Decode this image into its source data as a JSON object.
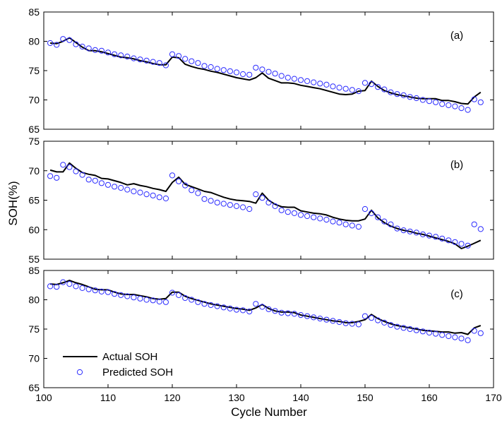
{
  "chart_data": {
    "type": "line",
    "xlabel": "Cycle Number",
    "ylabel": "SOH(%)",
    "xlim": [
      100,
      170
    ],
    "xticks": [
      100,
      110,
      120,
      130,
      140,
      150,
      160,
      170
    ],
    "legend": {
      "placement": "bottom-left-of-panel-c",
      "entries": [
        {
          "label": "Actual SOH",
          "style": "line",
          "color": "#000000"
        },
        {
          "label": "Predicted SOH",
          "style": "circle",
          "color": "#2b2bff"
        }
      ]
    },
    "panels": [
      {
        "label": "(a)",
        "ylim": [
          65,
          85
        ],
        "yticks": [
          65,
          70,
          75,
          80,
          85
        ],
        "actual": {
          "x": [
            101,
            102,
            103,
            104,
            105,
            106,
            107,
            108,
            109,
            110,
            111,
            112,
            113,
            114,
            115,
            116,
            117,
            118,
            119,
            120,
            121,
            122,
            123,
            124,
            125,
            126,
            127,
            128,
            129,
            130,
            131,
            132,
            133,
            134,
            135,
            136,
            137,
            138,
            139,
            140,
            141,
            142,
            143,
            144,
            145,
            146,
            147,
            148,
            149,
            150,
            151,
            152,
            153,
            154,
            155,
            156,
            157,
            158,
            159,
            160,
            161,
            162,
            163,
            164,
            165,
            166,
            167,
            168
          ],
          "y": [
            79.7,
            79.6,
            80.0,
            80.6,
            79.8,
            79.0,
            78.4,
            78.4,
            78.2,
            77.9,
            77.6,
            77.3,
            77.2,
            77.0,
            76.7,
            76.5,
            76.2,
            76.0,
            76.0,
            77.3,
            77.2,
            76.1,
            75.7,
            75.4,
            75.2,
            74.9,
            74.7,
            74.4,
            74.1,
            73.8,
            73.6,
            73.4,
            73.8,
            74.6,
            73.7,
            73.3,
            72.9,
            72.9,
            72.8,
            72.5,
            72.3,
            72.1,
            71.9,
            71.6,
            71.3,
            71.0,
            70.9,
            71.0,
            71.5,
            71.6,
            73.2,
            72.3,
            71.6,
            71.2,
            70.9,
            70.7,
            70.5,
            70.3,
            70.2,
            70.2,
            70.2,
            69.9,
            69.9,
            69.7,
            69.4,
            69.3,
            70.5,
            71.3
          ]
        },
        "predicted": {
          "x": [
            101,
            102,
            103,
            104,
            105,
            106,
            107,
            108,
            109,
            110,
            111,
            112,
            113,
            114,
            115,
            116,
            117,
            118,
            119,
            120,
            121,
            122,
            123,
            124,
            125,
            126,
            127,
            128,
            129,
            130,
            131,
            132,
            133,
            134,
            135,
            136,
            137,
            138,
            139,
            140,
            141,
            142,
            143,
            144,
            145,
            146,
            147,
            148,
            149,
            150,
            151,
            152,
            153,
            154,
            155,
            156,
            157,
            158,
            159,
            160,
            161,
            162,
            163,
            164,
            165,
            166,
            167,
            168
          ],
          "y": [
            79.7,
            79.4,
            80.4,
            80.2,
            79.5,
            79.1,
            78.8,
            78.5,
            78.4,
            78.1,
            77.8,
            77.6,
            77.4,
            77.1,
            76.9,
            76.7,
            76.5,
            76.3,
            75.9,
            77.8,
            77.5,
            77.0,
            76.6,
            76.3,
            75.8,
            75.6,
            75.3,
            75.1,
            74.9,
            74.7,
            74.4,
            74.3,
            75.5,
            75.2,
            74.8,
            74.5,
            74.1,
            73.8,
            73.6,
            73.4,
            73.2,
            73.0,
            72.8,
            72.6,
            72.3,
            72.1,
            71.9,
            71.7,
            71.5,
            72.9,
            72.7,
            72.2,
            71.8,
            71.3,
            71.0,
            70.8,
            70.5,
            70.3,
            70.0,
            69.8,
            69.6,
            69.3,
            69.1,
            68.9,
            68.6,
            68.3,
            70.1,
            69.6
          ]
        }
      },
      {
        "label": "(b)",
        "ylim": [
          55,
          75
        ],
        "yticks": [
          55,
          60,
          65,
          70,
          75
        ],
        "actual": {
          "x": [
            101,
            102,
            103,
            104,
            105,
            106,
            107,
            108,
            109,
            110,
            111,
            112,
            113,
            114,
            115,
            116,
            117,
            118,
            119,
            120,
            121,
            122,
            123,
            124,
            125,
            126,
            127,
            128,
            129,
            130,
            131,
            132,
            133,
            134,
            135,
            136,
            137,
            138,
            139,
            140,
            141,
            142,
            143,
            144,
            145,
            146,
            147,
            148,
            149,
            150,
            151,
            152,
            153,
            154,
            155,
            156,
            157,
            158,
            159,
            160,
            161,
            162,
            163,
            164,
            165,
            166,
            167,
            168
          ],
          "y": [
            70.1,
            69.8,
            69.8,
            71.3,
            70.4,
            69.7,
            69.4,
            69.2,
            68.7,
            68.6,
            68.3,
            68.0,
            67.6,
            67.8,
            67.5,
            67.3,
            67.0,
            66.8,
            66.5,
            68.0,
            68.9,
            67.7,
            67.3,
            66.9,
            66.5,
            66.3,
            65.9,
            65.5,
            65.2,
            65.0,
            64.9,
            64.8,
            64.5,
            66.2,
            65.0,
            64.3,
            63.9,
            63.8,
            63.8,
            63.2,
            63.0,
            62.8,
            62.7,
            62.5,
            62.1,
            61.8,
            61.6,
            61.5,
            61.5,
            61.8,
            63.3,
            62.0,
            61.2,
            60.6,
            60.2,
            59.9,
            59.7,
            59.4,
            59.2,
            58.9,
            58.6,
            58.3,
            58.0,
            57.6,
            56.8,
            57.2,
            57.7,
            58.2
          ]
        },
        "predicted": {
          "x": [
            101,
            102,
            103,
            104,
            105,
            106,
            107,
            108,
            109,
            110,
            111,
            112,
            113,
            114,
            115,
            116,
            117,
            118,
            119,
            120,
            121,
            122,
            123,
            124,
            125,
            126,
            127,
            128,
            129,
            130,
            131,
            132,
            133,
            134,
            135,
            136,
            137,
            138,
            139,
            140,
            141,
            142,
            143,
            144,
            145,
            146,
            147,
            148,
            149,
            150,
            151,
            152,
            153,
            154,
            155,
            156,
            157,
            158,
            159,
            160,
            161,
            162,
            163,
            164,
            165,
            166,
            167,
            168
          ],
          "y": [
            69.1,
            68.8,
            71.0,
            70.6,
            69.9,
            69.3,
            68.5,
            68.3,
            67.9,
            67.6,
            67.3,
            67.1,
            66.8,
            66.5,
            66.3,
            66.0,
            65.8,
            65.5,
            65.3,
            69.2,
            68.2,
            67.5,
            66.7,
            66.2,
            65.2,
            64.9,
            64.6,
            64.4,
            64.2,
            64.0,
            63.8,
            63.5,
            66.0,
            65.4,
            64.6,
            64.0,
            63.3,
            63.0,
            62.8,
            62.5,
            62.3,
            62.1,
            61.9,
            61.7,
            61.4,
            61.2,
            60.9,
            60.7,
            60.5,
            63.5,
            62.8,
            62.1,
            61.4,
            60.9,
            60.2,
            59.9,
            59.7,
            59.5,
            59.2,
            59.0,
            58.8,
            58.5,
            58.2,
            57.9,
            57.6,
            57.3,
            60.9,
            60.1
          ]
        }
      },
      {
        "label": "(c)",
        "ylim": [
          65,
          85
        ],
        "yticks": [
          65,
          70,
          75,
          80,
          85
        ],
        "actual": {
          "x": [
            101,
            102,
            103,
            104,
            105,
            106,
            107,
            108,
            109,
            110,
            111,
            112,
            113,
            114,
            115,
            116,
            117,
            118,
            119,
            120,
            121,
            122,
            123,
            124,
            125,
            126,
            127,
            128,
            129,
            130,
            131,
            132,
            133,
            134,
            135,
            136,
            137,
            138,
            139,
            140,
            141,
            142,
            143,
            144,
            145,
            146,
            147,
            148,
            149,
            150,
            151,
            152,
            153,
            154,
            155,
            156,
            157,
            158,
            159,
            160,
            161,
            162,
            163,
            164,
            165,
            166,
            167,
            168
          ],
          "y": [
            82.7,
            82.6,
            82.9,
            83.3,
            82.9,
            82.6,
            82.2,
            81.8,
            81.7,
            81.7,
            81.3,
            81.0,
            80.9,
            80.9,
            80.7,
            80.5,
            80.2,
            80.1,
            80.2,
            81.3,
            81.3,
            80.6,
            80.2,
            79.9,
            79.6,
            79.3,
            79.1,
            78.9,
            78.7,
            78.5,
            78.4,
            78.2,
            78.6,
            79.2,
            78.5,
            78.1,
            77.9,
            77.9,
            77.8,
            77.4,
            77.2,
            77.0,
            76.8,
            76.6,
            76.4,
            76.3,
            76.1,
            76.1,
            76.3,
            76.6,
            77.5,
            76.8,
            76.3,
            75.9,
            75.6,
            75.4,
            75.2,
            75.0,
            74.8,
            74.7,
            74.6,
            74.5,
            74.5,
            74.3,
            74.4,
            74.1,
            75.2,
            75.6
          ]
        },
        "predicted": {
          "x": [
            101,
            102,
            103,
            104,
            105,
            106,
            107,
            108,
            109,
            110,
            111,
            112,
            113,
            114,
            115,
            116,
            117,
            118,
            119,
            120,
            121,
            122,
            123,
            124,
            125,
            126,
            127,
            128,
            129,
            130,
            131,
            132,
            133,
            134,
            135,
            136,
            137,
            138,
            139,
            140,
            141,
            142,
            143,
            144,
            145,
            146,
            147,
            148,
            149,
            150,
            151,
            152,
            153,
            154,
            155,
            156,
            157,
            158,
            159,
            160,
            161,
            162,
            163,
            164,
            165,
            166,
            167,
            168
          ],
          "y": [
            82.3,
            82.2,
            83.0,
            82.7,
            82.3,
            82.0,
            81.8,
            81.6,
            81.4,
            81.3,
            81.0,
            80.8,
            80.6,
            80.4,
            80.2,
            80.0,
            79.9,
            79.7,
            79.6,
            81.2,
            80.8,
            80.3,
            80.0,
            79.6,
            79.3,
            79.1,
            78.9,
            78.7,
            78.5,
            78.3,
            78.2,
            78.0,
            79.3,
            78.8,
            78.4,
            78.1,
            77.8,
            77.7,
            77.6,
            77.4,
            77.2,
            77.0,
            76.8,
            76.6,
            76.4,
            76.2,
            76.0,
            75.9,
            75.8,
            77.2,
            76.9,
            76.5,
            76.1,
            75.7,
            75.4,
            75.2,
            75.0,
            74.8,
            74.6,
            74.4,
            74.2,
            74.0,
            73.8,
            73.6,
            73.4,
            73.1,
            74.7,
            74.3
          ]
        }
      }
    ]
  }
}
